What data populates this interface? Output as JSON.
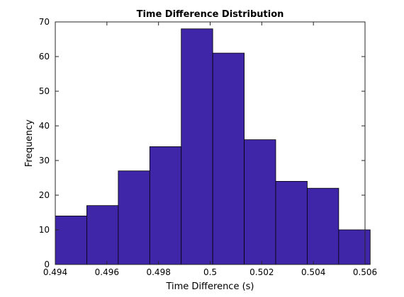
{
  "chart_data": {
    "type": "bar",
    "title": "Time Difference Distribution",
    "xlabel": "Time Difference (s)",
    "ylabel": "Frequency",
    "bin_edges": [
      0.494,
      0.49522,
      0.49644,
      0.49766,
      0.49888,
      0.5001,
      0.50132,
      0.50254,
      0.50376,
      0.50498,
      0.5062
    ],
    "values": [
      14,
      17,
      27,
      34,
      68,
      61,
      36,
      24,
      22,
      10
    ],
    "xlim": [
      0.494,
      0.506
    ],
    "ylim": [
      0,
      70
    ],
    "xticks": [
      0.494,
      0.496,
      0.498,
      0.5,
      0.502,
      0.504,
      0.506
    ],
    "xtick_labels": [
      "0.494",
      "0.496",
      "0.498",
      "0.5",
      "0.502",
      "0.504",
      "0.506"
    ],
    "yticks": [
      0,
      10,
      20,
      30,
      40,
      50,
      60,
      70
    ],
    "ytick_labels": [
      "0",
      "10",
      "20",
      "30",
      "40",
      "50",
      "60",
      "70"
    ],
    "grid": false,
    "bar_color": "#3f26a8",
    "edge_color": "#000000"
  }
}
